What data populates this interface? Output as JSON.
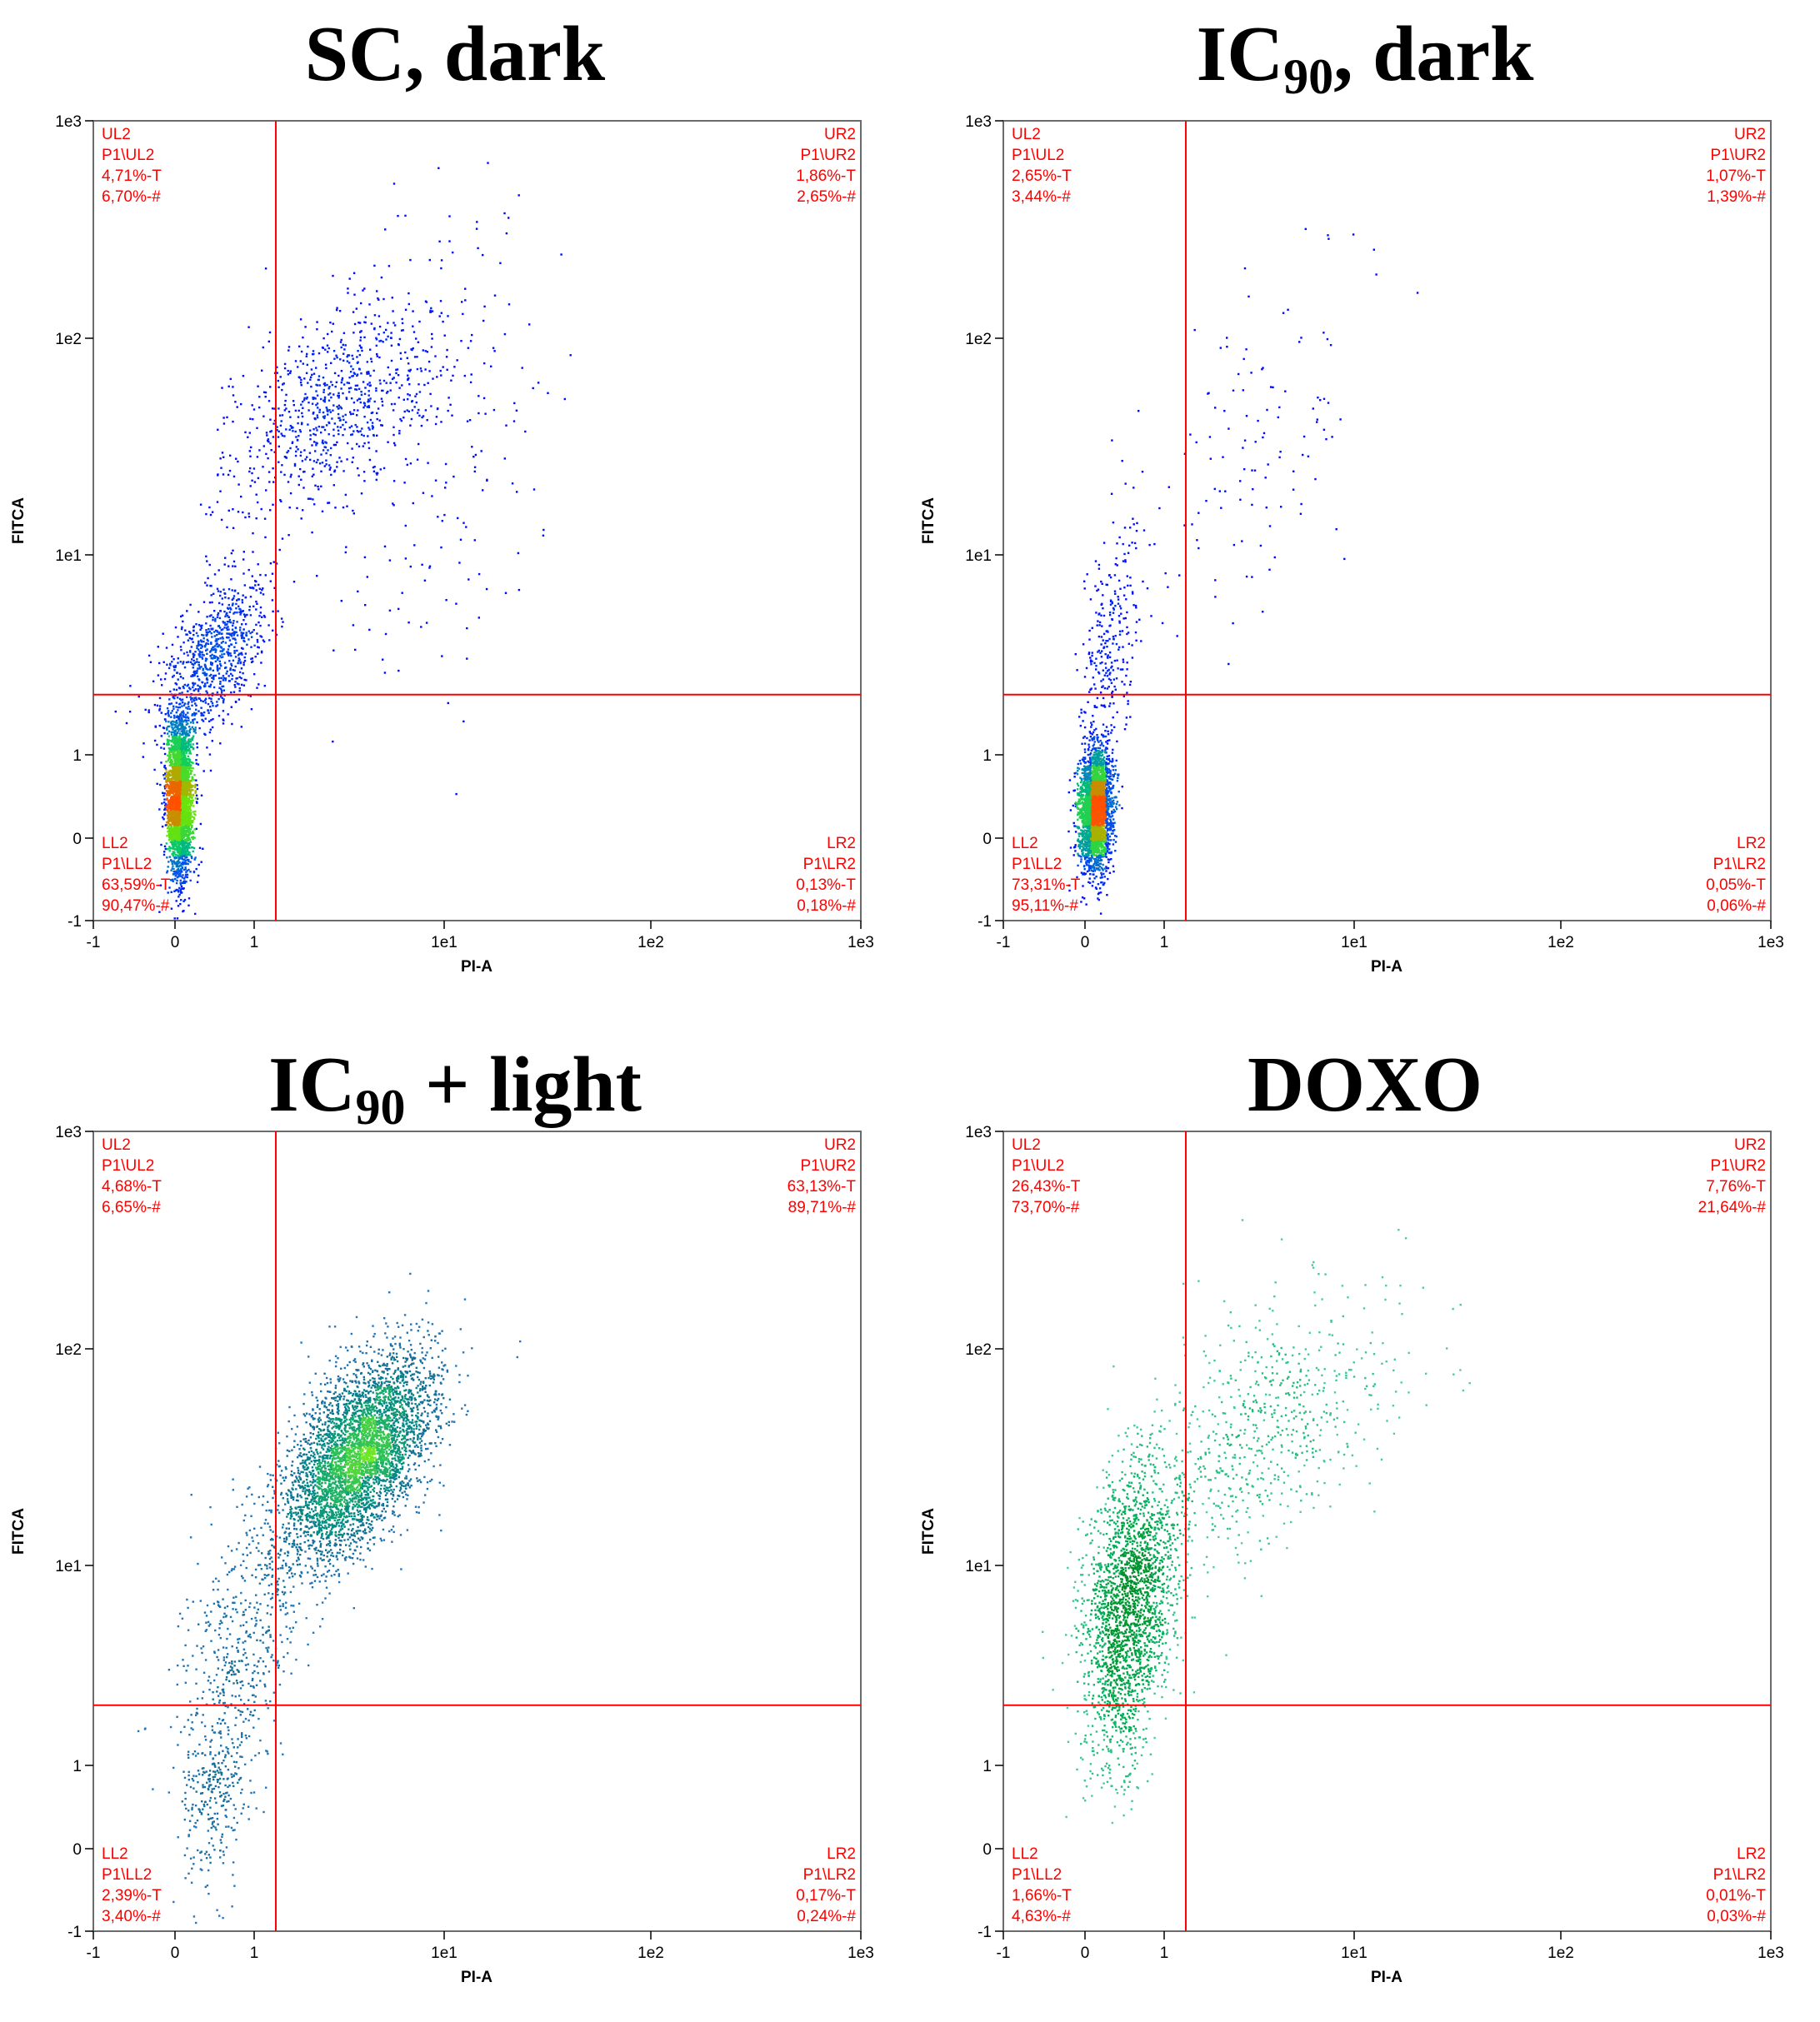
{
  "figure": {
    "gate_color": "#ff0000",
    "palette": {
      "low": "#0000ff",
      "mid": "#00c864",
      "high": "#ff8000"
    }
  },
  "chart_data": [
    {
      "type": "scatter",
      "title": "SC, dark",
      "title_main": "SC, dark",
      "title_sub": "",
      "title_rest": "",
      "xlabel": "PI-A",
      "ylabel": "FITCA",
      "x_ticks": [
        "-1",
        "0",
        "1",
        "1e1",
        "1e2",
        "1e3"
      ],
      "y_ticks": [
        "-1",
        "0",
        "1",
        "1e1",
        "1e2",
        "1e3"
      ],
      "scale": "biexponential",
      "gate": {
        "x": 1.3,
        "y": 2.0
      },
      "palette": "blue-green-red",
      "quadrants": {
        "UL": [
          "UL2",
          "P1\\UL2",
          "4,71%-T",
          "6,70%-#"
        ],
        "UR": [
          "UR2",
          "P1\\UR2",
          "1,86%-T",
          "2,65%-#"
        ],
        "LL": [
          "LL2",
          "P1\\LL2",
          "63,59%-T",
          "90,47%-#"
        ],
        "LR": [
          "LR2",
          "P1\\LR2",
          "0,13%-T",
          "0,18%-#"
        ]
      },
      "populations": [
        {
          "n": 3200,
          "cx": 0.05,
          "cy": 0.5,
          "sx": 0.08,
          "sy": 0.45,
          "rho": 0.0
        },
        {
          "n": 900,
          "cx": 0.45,
          "cy": 3.0,
          "sx": 0.35,
          "sy": 1.5,
          "rho": 0.6
        },
        {
          "n": 800,
          "cx": 2.5,
          "cy": 50,
          "sx": 1.8,
          "sy": 30,
          "rho": 0.6
        },
        {
          "n": 200,
          "cx": 8,
          "cy": 30,
          "sx": 5,
          "sy": 40,
          "rho": 0.3
        }
      ]
    },
    {
      "type": "scatter",
      "title": "IC90, dark",
      "title_main": "IC",
      "title_sub": "90",
      "title_rest": ", dark",
      "xlabel": "PI-A",
      "ylabel": "FITCA",
      "x_ticks": [
        "-1",
        "0",
        "1",
        "1e1",
        "1e2",
        "1e3"
      ],
      "y_ticks": [
        "-1",
        "0",
        "1",
        "1e1",
        "1e2",
        "1e3"
      ],
      "scale": "biexponential",
      "gate": {
        "x": 1.3,
        "y": 2.0
      },
      "palette": "blue-green-red",
      "quadrants": {
        "UL": [
          "UL2",
          "P1\\UL2",
          "2,65%-T",
          "3,44%-#"
        ],
        "UR": [
          "UR2",
          "P1\\UR2",
          "1,07%-T",
          "1,39%-#"
        ],
        "LL": [
          "LL2",
          "P1\\LL2",
          "73,31%-T",
          "95,11%-#"
        ],
        "LR": [
          "LR2",
          "P1\\LR2",
          "0,05%-T",
          "0,06%-#"
        ]
      },
      "populations": [
        {
          "n": 3000,
          "cx": 0.12,
          "cy": 0.35,
          "sx": 0.1,
          "sy": 0.35,
          "rho": 0.1
        },
        {
          "n": 300,
          "cx": 0.3,
          "cy": 3.5,
          "sx": 0.2,
          "sy": 2.5,
          "rho": 0.4
        },
        {
          "n": 120,
          "cx": 3,
          "cy": 30,
          "sx": 2,
          "sy": 30,
          "rho": 0.5
        }
      ]
    },
    {
      "type": "scatter",
      "title": "IC90 + light",
      "title_main": "IC",
      "title_sub": "90",
      "title_rest": " + light",
      "xlabel": "PI-A",
      "ylabel": "FITCA",
      "x_ticks": [
        "-1",
        "0",
        "1",
        "1e1",
        "1e2",
        "1e3"
      ],
      "y_ticks": [
        "-1",
        "0",
        "1",
        "1e1",
        "1e2",
        "1e3"
      ],
      "scale": "biexponential",
      "gate": {
        "x": 1.3,
        "y": 2.0
      },
      "palette": "blue-teal-green",
      "quadrants": {
        "UL": [
          "UL2",
          "P1\\UL2",
          "4,68%-T",
          "6,65%-#"
        ],
        "UR": [
          "UR2",
          "P1\\UR2",
          "63,13%-T",
          "89,71%-#"
        ],
        "LL": [
          "LL2",
          "P1\\LL2",
          "2,39%-T",
          "3,40%-#"
        ],
        "LR": [
          "LR2",
          "P1\\LR2",
          "0,17%-T",
          "0,24%-#"
        ]
      },
      "populations": [
        {
          "n": 4200,
          "cx": 3.5,
          "cy": 32,
          "sx": 1.6,
          "sy": 18,
          "rho": 0.55
        },
        {
          "n": 500,
          "cx": 0.8,
          "cy": 3.5,
          "sx": 0.4,
          "sy": 3.0,
          "rho": 0.4
        },
        {
          "n": 250,
          "cx": 0.5,
          "cy": 0.6,
          "sx": 0.2,
          "sy": 0.5,
          "rho": 0.2
        }
      ]
    },
    {
      "type": "scatter",
      "title": "DOXO",
      "title_main": "DOXO",
      "title_sub": "",
      "title_rest": "",
      "xlabel": "PI-A",
      "ylabel": "FITCA",
      "x_ticks": [
        "-1",
        "0",
        "1",
        "1e1",
        "1e2",
        "1e3"
      ],
      "y_ticks": [
        "-1",
        "0",
        "1",
        "1e1",
        "1e2",
        "1e3"
      ],
      "scale": "biexponential",
      "gate": {
        "x": 1.3,
        "y": 2.0
      },
      "palette": "green-teal",
      "quadrants": {
        "UL": [
          "UL2",
          "P1\\UL2",
          "26,43%-T",
          "73,70%-#"
        ],
        "UR": [
          "UR2",
          "P1\\UR2",
          "7,76%-T",
          "21,64%-#"
        ],
        "LL": [
          "LL2",
          "P1\\LL2",
          "1,66%-T",
          "4,63%-#"
        ],
        "LR": [
          "LR2",
          "P1\\LR2",
          "0,01%-T",
          "0,03%-#"
        ]
      },
      "populations": [
        {
          "n": 2000,
          "cx": 0.55,
          "cy": 6.5,
          "sx": 0.3,
          "sy": 5,
          "rho": 0.3
        },
        {
          "n": 700,
          "cx": 3,
          "cy": 40,
          "sx": 2.5,
          "sy": 30,
          "rho": 0.5
        },
        {
          "n": 150,
          "cx": 0.4,
          "cy": 1.5,
          "sx": 0.2,
          "sy": 0.7,
          "rho": 0.2
        }
      ]
    }
  ]
}
